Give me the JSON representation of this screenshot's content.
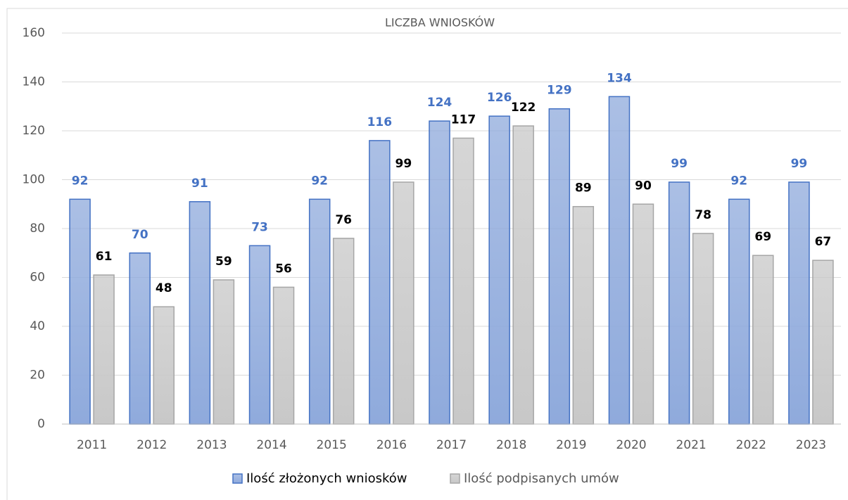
{
  "chart_data": {
    "type": "bar",
    "title": "LICZBA WNIOSKÓW",
    "categories": [
      "2011",
      "2012",
      "2013",
      "2014",
      "2015",
      "2016",
      "2017",
      "2018",
      "2019",
      "2020",
      "2021",
      "2022",
      "2023"
    ],
    "series": [
      {
        "name": "Ilość złożonych wniosków",
        "color": "#8faadc",
        "values": [
          92,
          70,
          91,
          73,
          92,
          116,
          124,
          126,
          129,
          134,
          99,
          92,
          99
        ]
      },
      {
        "name": "Ilość podpisanych umów",
        "color": "#c8c8c8",
        "values": [
          61,
          48,
          59,
          56,
          76,
          99,
          117,
          122,
          89,
          90,
          78,
          69,
          67
        ]
      }
    ],
    "ylim": [
      0,
      160
    ],
    "yticks": [
      0,
      20,
      40,
      60,
      80,
      100,
      120,
      140,
      160
    ],
    "grid": true,
    "legend": "bottom"
  }
}
